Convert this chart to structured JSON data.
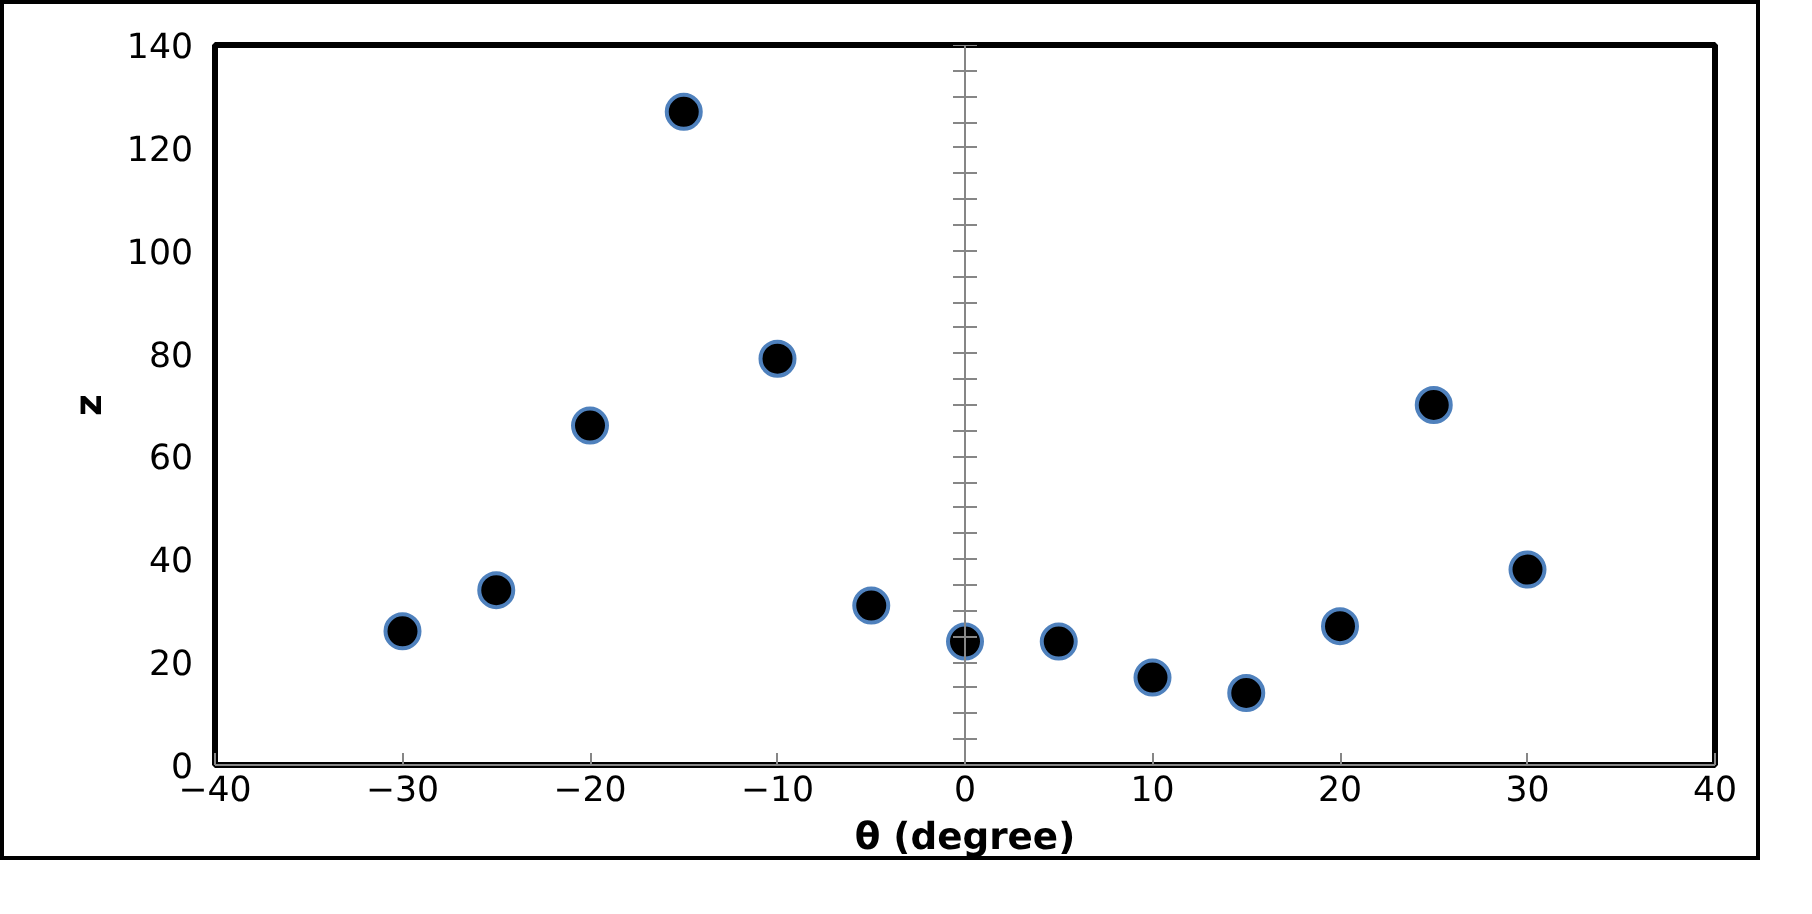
{
  "chart_data": {
    "type": "scatter",
    "xlabel": "θ (degree)",
    "ylabel": "z",
    "x": [
      -30,
      -25,
      -20,
      -15,
      -10,
      -5,
      0,
      5,
      10,
      15,
      20,
      25,
      30
    ],
    "values": [
      26,
      34,
      66,
      127,
      79,
      31,
      24,
      24,
      17,
      14,
      27,
      70,
      38
    ],
    "color": "#000000",
    "marker": "circle",
    "xlim": [
      -40,
      40
    ],
    "xticks": [
      -40,
      -30,
      -20,
      -10,
      0,
      10,
      20,
      30,
      40
    ],
    "ylim": [
      0,
      140
    ],
    "yticks": [
      0,
      20,
      40,
      60,
      80,
      100,
      120,
      140
    ]
  }
}
